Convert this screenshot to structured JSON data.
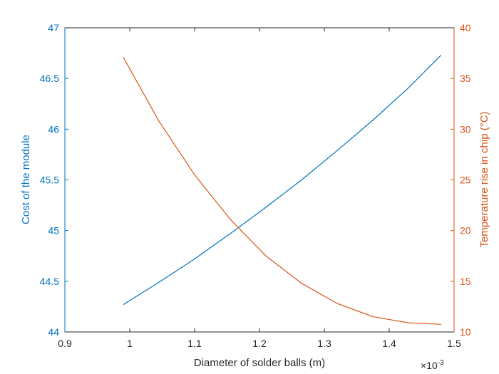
{
  "chart_data": {
    "type": "line",
    "xlabel": "Diameter of solder balls (m)",
    "x_exponent": "×10",
    "x_exponent_power": "-3",
    "xlim": [
      0.9,
      1.5
    ],
    "x_ticks": [
      0.9,
      1.0,
      1.1,
      1.2,
      1.3,
      1.4,
      1.5
    ],
    "x_tick_labels": [
      "0.9",
      "1",
      "1.1",
      "1.2",
      "1.3",
      "1.4",
      "1.5"
    ],
    "left_axis": {
      "label": "Cost of the module",
      "ylim": [
        44,
        47
      ],
      "ticks": [
        44,
        44.5,
        45,
        45.5,
        46,
        46.5,
        47
      ],
      "tick_labels": [
        "44",
        "44.5",
        "45",
        "45.5",
        "46",
        "46.5",
        "47"
      ],
      "color": "#0072bd"
    },
    "right_axis": {
      "label": "Temperature rise in chip (°C)",
      "ylim": [
        10,
        40
      ],
      "ticks": [
        10,
        15,
        20,
        25,
        30,
        35,
        40
      ],
      "tick_labels": [
        "10",
        "15",
        "20",
        "25",
        "30",
        "35",
        "40"
      ],
      "color": "#d95319"
    },
    "series": [
      {
        "axis": "left",
        "color": "#0072bd",
        "x": [
          0.99,
          1.045,
          1.1,
          1.155,
          1.21,
          1.265,
          1.32,
          1.375,
          1.43,
          1.48
        ],
        "y": [
          44.27,
          44.49,
          44.72,
          44.97,
          45.23,
          45.5,
          45.79,
          46.09,
          46.41,
          46.73
        ]
      },
      {
        "axis": "right",
        "color": "#d95319",
        "x": [
          0.99,
          1.045,
          1.1,
          1.155,
          1.21,
          1.265,
          1.32,
          1.375,
          1.43,
          1.48
        ],
        "y": [
          37.1,
          30.8,
          25.5,
          21.1,
          17.5,
          14.8,
          12.8,
          11.5,
          10.9,
          10.75
        ]
      }
    ]
  }
}
